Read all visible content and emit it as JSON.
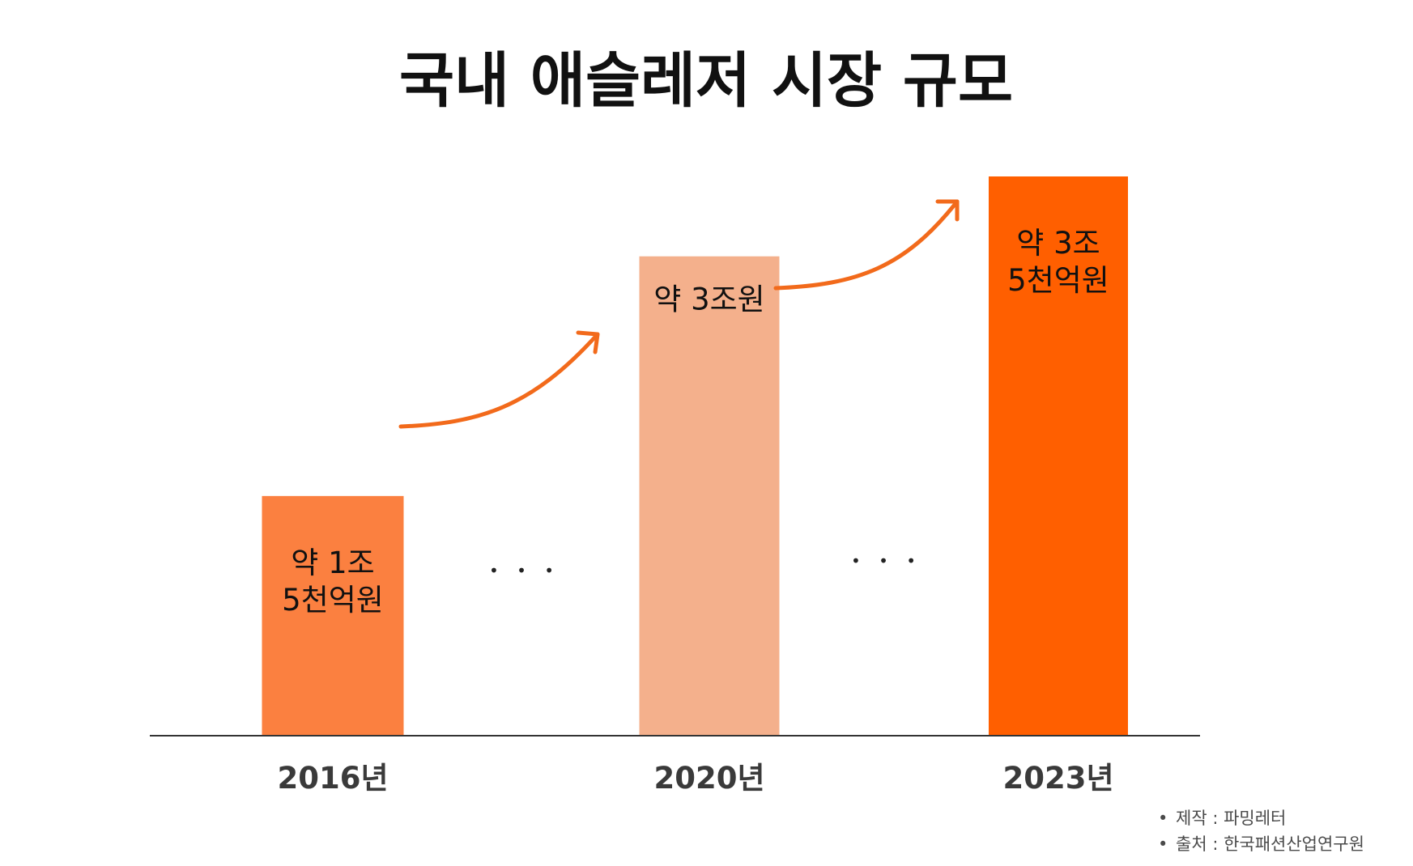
{
  "chart_data": {
    "type": "bar",
    "title": "국내 애슬레저 시장 규모",
    "categories": [
      "2016년",
      "2020년",
      "2023년"
    ],
    "values": [
      1.5,
      3.0,
      3.5
    ],
    "value_unit": "조원",
    "data_labels": [
      [
        "약 1조",
        "5천억원"
      ],
      [
        "약 3조원"
      ],
      [
        "약 3조",
        "5천억원"
      ]
    ],
    "colors": [
      "#FB8040",
      "#F4B08C",
      "#FF5F00"
    ],
    "arrow_color": "#F26A1B",
    "ellipsis": "• • •",
    "ylim": [
      0,
      3.5
    ],
    "grid": false,
    "legend": "none"
  },
  "credits": {
    "bullet": "•",
    "lines": [
      "제작 : 파밍레터",
      "출처 : 한국패션산업연구원"
    ]
  }
}
